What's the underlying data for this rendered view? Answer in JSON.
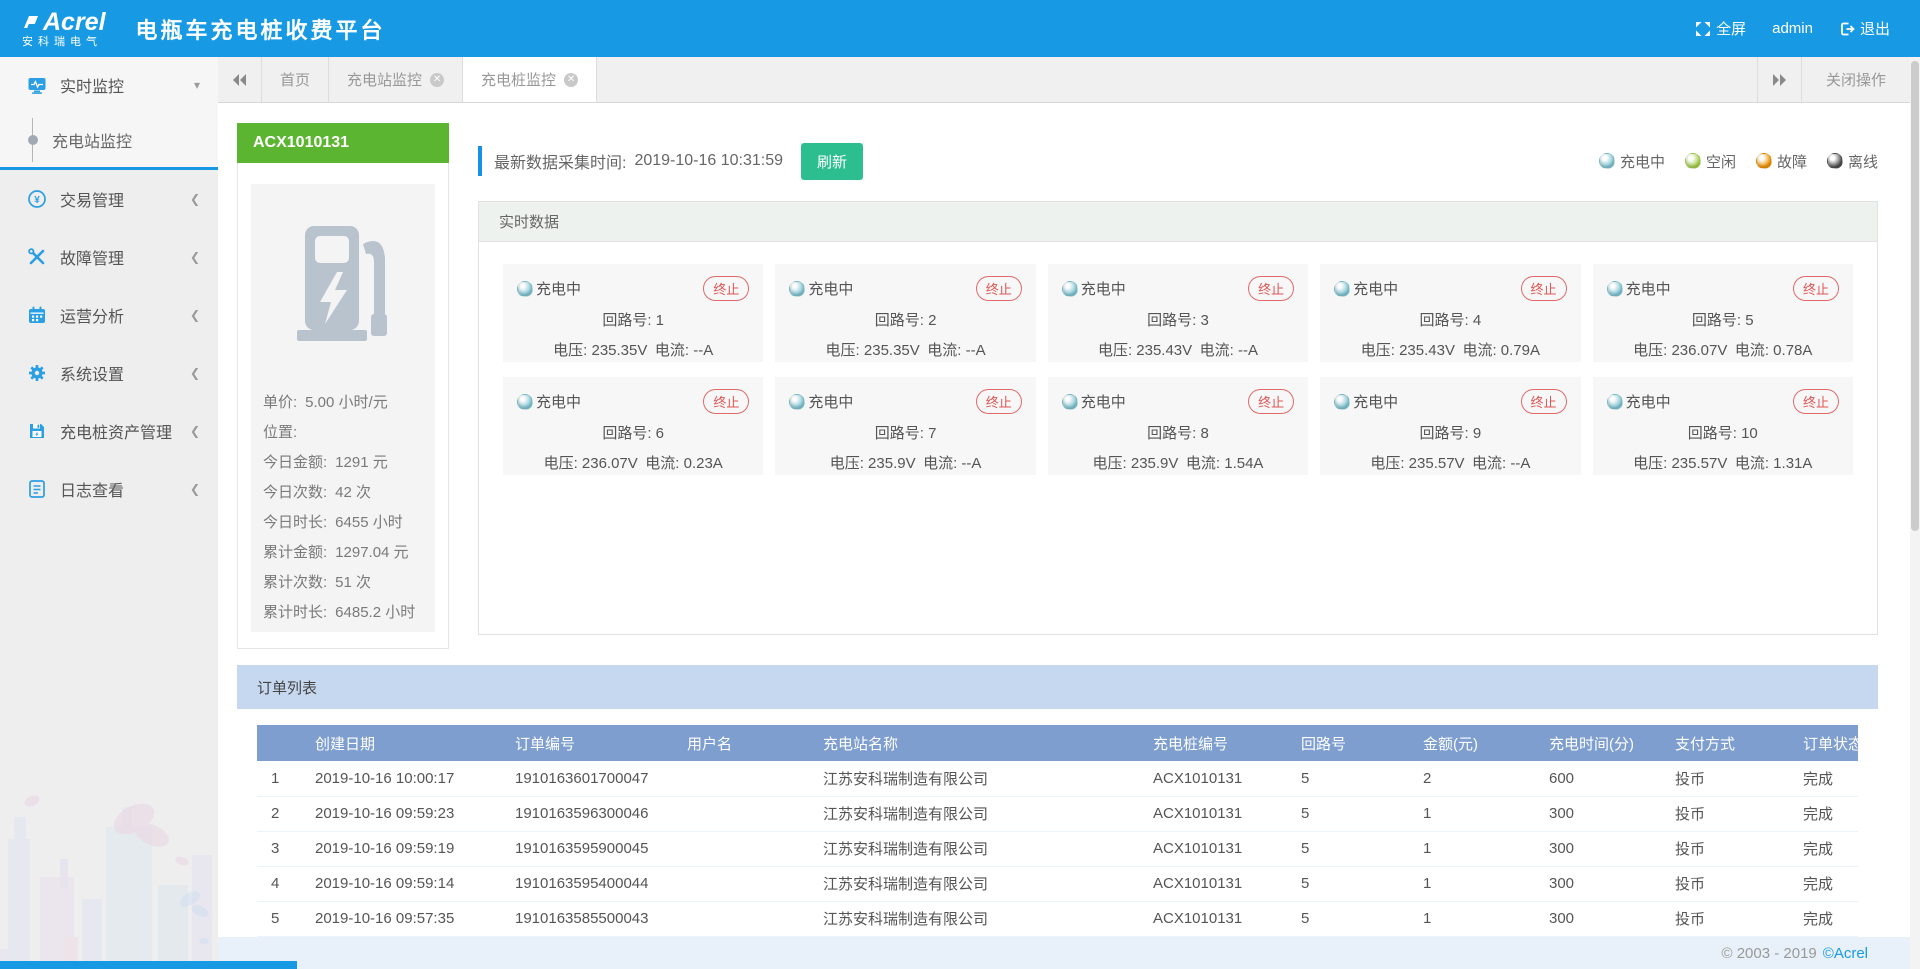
{
  "header": {
    "logo_main": "Acrel",
    "logo_sub": "安科瑞电气",
    "title": "电瓶车充电桩收费平台",
    "fullscreen_label": "全屏",
    "username": "admin",
    "logout_label": "退出"
  },
  "tabbar": {
    "tabs": [
      {
        "label": "首页",
        "closable": false,
        "active": false
      },
      {
        "label": "充电站监控",
        "closable": true,
        "active": false
      },
      {
        "label": "充电桩监控",
        "closable": true,
        "active": true
      }
    ],
    "close_ops_label": "关闭操作"
  },
  "sidebar": {
    "items": [
      {
        "label": "实时监控",
        "icon": "monitor-icon",
        "state": "expanded",
        "children": [
          {
            "label": "充电站监控",
            "active": true
          }
        ]
      },
      {
        "label": "交易管理",
        "icon": "transaction-icon",
        "state": "collapsed"
      },
      {
        "label": "故障管理",
        "icon": "fault-icon",
        "state": "collapsed"
      },
      {
        "label": "运营分析",
        "icon": "analysis-icon",
        "state": "collapsed"
      },
      {
        "label": "系统设置",
        "icon": "settings-icon",
        "state": "collapsed"
      },
      {
        "label": "充电桩资产管理",
        "icon": "asset-icon",
        "state": "collapsed"
      },
      {
        "label": "日志查看",
        "icon": "log-icon",
        "state": "collapsed"
      }
    ]
  },
  "station": {
    "id": "ACX1010131",
    "stats": [
      {
        "label": "单价:",
        "value": "5.00 小时/元"
      },
      {
        "label": "位置:",
        "value": ""
      },
      {
        "label": "今日金额:",
        "value": "1291 元"
      },
      {
        "label": "今日次数:",
        "value": "42 次"
      },
      {
        "label": "今日时长:",
        "value": "6455 小时"
      },
      {
        "label": "累计金额:",
        "value": "1297.04 元"
      },
      {
        "label": "累计次数:",
        "value": "51 次"
      },
      {
        "label": "累计时长:",
        "value": "6485.2 小时"
      }
    ]
  },
  "monitor": {
    "last_update_label": "最新数据采集时间:",
    "last_update_time": "2019-10-16 10:31:59",
    "refresh_label": "刷新",
    "panel_title": "实时数据",
    "status_label": "充电中",
    "status_color": "#82c7d6",
    "terminate_label": "终止",
    "circuit_label": "回路号:",
    "voltage_label": "电压:",
    "current_label": "电流:",
    "legend": [
      {
        "label": "充电中",
        "color": "#82c7d6"
      },
      {
        "label": "空闲",
        "color": "#a6d14f"
      },
      {
        "label": "故障",
        "color": "#f29400"
      },
      {
        "label": "离线",
        "color": "#4f4f4f"
      }
    ],
    "cards": [
      {
        "circuit": "1",
        "voltage": "235.35V",
        "current": "--A"
      },
      {
        "circuit": "2",
        "voltage": "235.35V",
        "current": "--A"
      },
      {
        "circuit": "3",
        "voltage": "235.43V",
        "current": "--A"
      },
      {
        "circuit": "4",
        "voltage": "235.43V",
        "current": "0.79A"
      },
      {
        "circuit": "5",
        "voltage": "236.07V",
        "current": "0.78A"
      },
      {
        "circuit": "6",
        "voltage": "236.07V",
        "current": "0.23A"
      },
      {
        "circuit": "7",
        "voltage": "235.9V",
        "current": "--A"
      },
      {
        "circuit": "8",
        "voltage": "235.9V",
        "current": "1.54A"
      },
      {
        "circuit": "9",
        "voltage": "235.57V",
        "current": "--A"
      },
      {
        "circuit": "10",
        "voltage": "235.57V",
        "current": "1.31A"
      }
    ]
  },
  "orders": {
    "title": "订单列表",
    "columns": [
      "",
      "创建日期",
      "订单编号",
      "用户名",
      "充电站名称",
      "充电桩编号",
      "回路号",
      "金额(元)",
      "充电时间(分)",
      "支付方式",
      "订单状态"
    ],
    "rows": [
      [
        "1",
        "2019-10-16 10:00:17",
        "1910163601700047",
        "",
        "江苏安科瑞制造有限公司",
        "ACX1010131",
        "5",
        "2",
        "600",
        "投币",
        "完成"
      ],
      [
        "2",
        "2019-10-16 09:59:23",
        "1910163596300046",
        "",
        "江苏安科瑞制造有限公司",
        "ACX1010131",
        "5",
        "1",
        "300",
        "投币",
        "完成"
      ],
      [
        "3",
        "2019-10-16 09:59:19",
        "1910163595900045",
        "",
        "江苏安科瑞制造有限公司",
        "ACX1010131",
        "5",
        "1",
        "300",
        "投币",
        "完成"
      ],
      [
        "4",
        "2019-10-16 09:59:14",
        "1910163595400044",
        "",
        "江苏安科瑞制造有限公司",
        "ACX1010131",
        "5",
        "1",
        "300",
        "投币",
        "完成"
      ],
      [
        "5",
        "2019-10-16 09:57:35",
        "1910163585500043",
        "",
        "江苏安科瑞制造有限公司",
        "ACX1010131",
        "5",
        "1",
        "300",
        "投币",
        "完成"
      ]
    ]
  },
  "footer": {
    "copyright": "© 2003 - 2019",
    "brand": "©Acrel"
  }
}
